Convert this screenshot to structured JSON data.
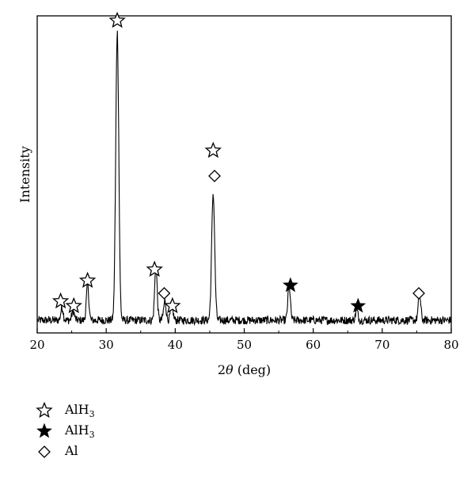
{
  "chart_data": {
    "type": "line",
    "title": "",
    "xlabel": "2θ (deg)",
    "xlabel_prefix": "2",
    "xlabel_symbol": "θ",
    "xlabel_suffix": " (deg)",
    "ylabel": "Intensity",
    "xlim": [
      20,
      80
    ],
    "ylim": [
      0,
      100
    ],
    "xticks": [
      20,
      30,
      40,
      50,
      60,
      70,
      80
    ],
    "yticks_shown": false,
    "grid": false,
    "legend_position": "below-left",
    "series": [
      {
        "peaks": [
          {
            "x": 23.6,
            "h": 4
          },
          {
            "x": 25.2,
            "h": 3
          },
          {
            "x": 27.3,
            "h": 11
          },
          {
            "x": 31.6,
            "h": 91
          },
          {
            "x": 37.2,
            "h": 17
          },
          {
            "x": 38.5,
            "h": 6
          },
          {
            "x": 39.5,
            "h": 5
          },
          {
            "x": 45.5,
            "h": 40
          },
          {
            "x": 56.5,
            "h": 11
          },
          {
            "x": 66.3,
            "h": 3
          },
          {
            "x": 75.4,
            "h": 8
          }
        ],
        "baseline": 4,
        "noise": 1.3
      }
    ],
    "markers": [
      {
        "x": 23.4,
        "y": 10,
        "symbol": "open-star"
      },
      {
        "x": 25.3,
        "y": 8.5,
        "symbol": "open-star"
      },
      {
        "x": 27.3,
        "y": 16.5,
        "symbol": "open-star"
      },
      {
        "x": 31.6,
        "y": 98.5,
        "symbol": "open-star"
      },
      {
        "x": 37.0,
        "y": 20,
        "symbol": "open-star"
      },
      {
        "x": 38.4,
        "y": 12.5,
        "symbol": "diamond"
      },
      {
        "x": 39.6,
        "y": 8.5,
        "symbol": "open-star"
      },
      {
        "x": 45.5,
        "y": 57.5,
        "symbol": "open-star"
      },
      {
        "x": 45.7,
        "y": 49.5,
        "symbol": "diamond"
      },
      {
        "x": 56.7,
        "y": 15,
        "symbol": "filled-star"
      },
      {
        "x": 66.5,
        "y": 8.5,
        "symbol": "filled-star"
      },
      {
        "x": 75.3,
        "y": 12.5,
        "symbol": "diamond"
      }
    ],
    "legend": [
      {
        "symbol": "open-star",
        "label_main": "AlH",
        "label_sub": "3"
      },
      {
        "symbol": "filled-star",
        "label_main": "AlH",
        "label_sub": "3"
      },
      {
        "symbol": "diamond",
        "label_main": "Al",
        "label_sub": ""
      }
    ]
  }
}
